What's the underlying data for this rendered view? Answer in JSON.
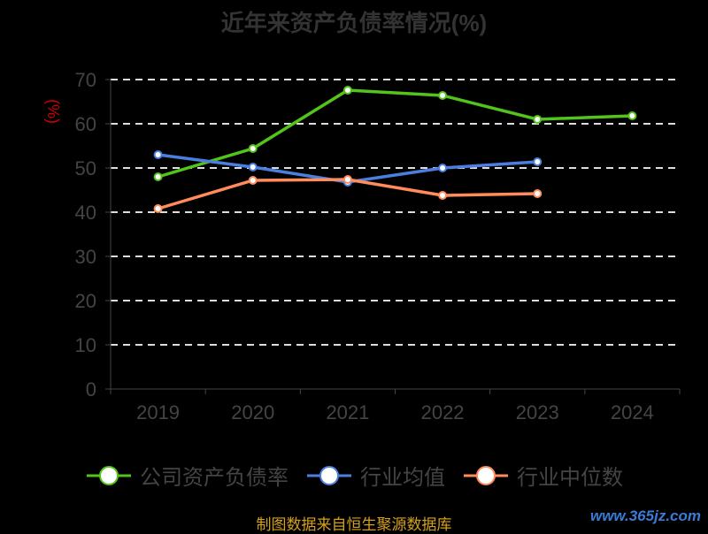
{
  "chart_data": {
    "type": "line",
    "title": "近年来资产负债率情况(%)",
    "ylabel": "(%)",
    "xlabel": "",
    "categories": [
      "2019",
      "2020",
      "2021",
      "2022",
      "2023",
      "2024"
    ],
    "ylim": [
      0,
      70
    ],
    "yticks": [
      0,
      10,
      20,
      30,
      40,
      50,
      60,
      70
    ],
    "grid": true,
    "legend_position": "bottom",
    "series": [
      {
        "name": "公司资产负债率",
        "color": "#52c41a",
        "values": [
          48.0,
          54.4,
          67.6,
          66.4,
          61.0,
          61.8
        ]
      },
      {
        "name": "行业均值",
        "color": "#4a7fe0",
        "values": [
          53.0,
          50.2,
          46.8,
          50.0,
          51.4,
          null
        ]
      },
      {
        "name": "行业中位数",
        "color": "#ff8c5a",
        "values": [
          40.8,
          47.2,
          47.4,
          43.8,
          44.2,
          null
        ]
      }
    ]
  },
  "footer": {
    "source": "制图数据来自恒生聚源数据库",
    "watermark": "www.365jz.com"
  }
}
